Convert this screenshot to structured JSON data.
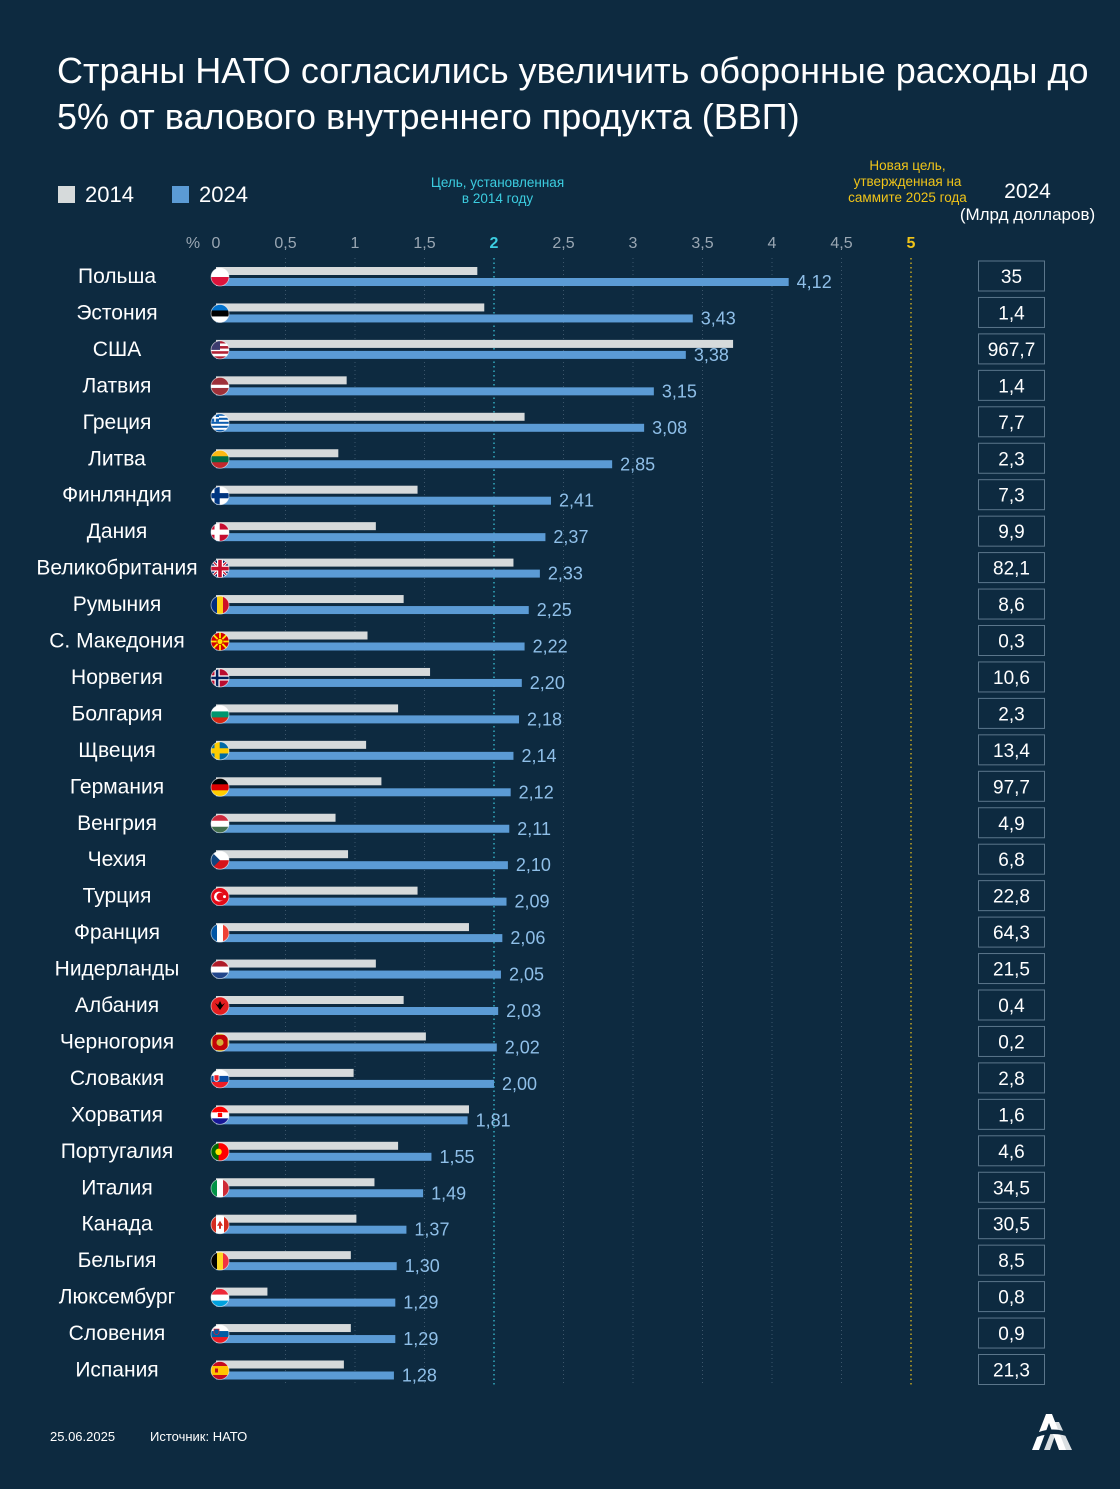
{
  "title": "Страны НАТО согласились увеличить оборонные расходы до 5% от валового внутреннего продукта (ВВП)",
  "legend": [
    {
      "label": "2014",
      "color": "#d6dadb"
    },
    {
      "label": "2024",
      "color": "#5b9bd5"
    }
  ],
  "target_2014_label": "Цель, установленная в 2014 году",
  "target_2025_label": "Новая цель, утвержденная на саммите 2025 года",
  "gdp_column": {
    "year": "2024",
    "unit": "(Млрд долларов)"
  },
  "axis": {
    "unit_label": "%",
    "ticks": [
      "0",
      "0,5",
      "1",
      "1,5",
      "2",
      "2,5",
      "3",
      "3,5",
      "4",
      "4,5",
      "5"
    ]
  },
  "colors": {
    "background": "#0d2a40",
    "bar_2014": "#d6dadb",
    "bar_2024": "#5b9bd5",
    "target_2014": "#3ccde0",
    "target_2025": "#f0c419",
    "value_text": "#8fbfe8"
  },
  "chart_data": {
    "type": "bar",
    "orientation": "horizontal",
    "xlim": [
      0,
      5
    ],
    "xlabel": "%",
    "categories": [
      "Польша",
      "Эстония",
      "США",
      "Латвия",
      "Греция",
      "Литва",
      "Финляндия",
      "Дания",
      "Великобритания",
      "Румыния",
      "С. Македония",
      "Норвегия",
      "Болгария",
      "Щвеция",
      "Германия",
      "Венгрия",
      "Чехия",
      "Турция",
      "Франция",
      "Нидерланды",
      "Албания",
      "Черногория",
      "Словакия",
      "Хорватия",
      "Португалия",
      "Италия",
      "Канада",
      "Бельгия",
      "Люксембург",
      "Словения",
      "Испания"
    ],
    "series": [
      {
        "name": "2014",
        "values": [
          1.88,
          1.93,
          3.72,
          0.94,
          2.22,
          0.88,
          1.45,
          1.15,
          2.14,
          1.35,
          1.09,
          1.54,
          1.31,
          1.08,
          1.19,
          0.86,
          0.95,
          1.45,
          1.82,
          1.15,
          1.35,
          1.51,
          0.99,
          1.82,
          1.31,
          1.14,
          1.01,
          0.97,
          0.37,
          0.97,
          0.92
        ]
      },
      {
        "name": "2024",
        "values": [
          4.12,
          3.43,
          3.38,
          3.15,
          3.08,
          2.85,
          2.41,
          2.37,
          2.33,
          2.25,
          2.22,
          2.2,
          2.18,
          2.14,
          2.12,
          2.11,
          2.1,
          2.09,
          2.06,
          2.05,
          2.03,
          2.02,
          2.0,
          1.81,
          1.55,
          1.49,
          1.37,
          1.3,
          1.29,
          1.29,
          1.28
        ]
      }
    ],
    "value_labels_2024": [
      "4,12",
      "3,43",
      "3,38",
      "3,15",
      "3,08",
      "2,85",
      "2,41",
      "2,37",
      "2,33",
      "2,25",
      "2,22",
      "2,20",
      "2,18",
      "2,14",
      "2,12",
      "2,11",
      "2,10",
      "2,09",
      "2,06",
      "2,05",
      "2,03",
      "2,02",
      "2,00",
      "1,81",
      "1,55",
      "1,49",
      "1,37",
      "1,30",
      "1,29",
      "1,29",
      "1,28"
    ],
    "gdp_2024_bn_usd": [
      "35",
      "1,4",
      "967,7",
      "1,4",
      "7,7",
      "2,3",
      "7,3",
      "9,9",
      "82,1",
      "8,6",
      "0,3",
      "10,6",
      "2,3",
      "13,4",
      "97,7",
      "4,9",
      "6,8",
      "22,8",
      "64,3",
      "21,5",
      "0,4",
      "0,2",
      "2,8",
      "1,6",
      "4,6",
      "34,5",
      "30,5",
      "8,5",
      "0,8",
      "0,9",
      "21,3"
    ],
    "flag_icons": [
      "poland-flag-icon",
      "estonia-flag-icon",
      "usa-flag-icon",
      "latvia-flag-icon",
      "greece-flag-icon",
      "lithuania-flag-icon",
      "finland-flag-icon",
      "denmark-flag-icon",
      "uk-flag-icon",
      "romania-flag-icon",
      "north-macedonia-flag-icon",
      "norway-flag-icon",
      "bulgaria-flag-icon",
      "sweden-flag-icon",
      "germany-flag-icon",
      "hungary-flag-icon",
      "czechia-flag-icon",
      "turkey-flag-icon",
      "france-flag-icon",
      "netherlands-flag-icon",
      "albania-flag-icon",
      "montenegro-flag-icon",
      "slovakia-flag-icon",
      "croatia-flag-icon",
      "portugal-flag-icon",
      "italy-flag-icon",
      "canada-flag-icon",
      "belgium-flag-icon",
      "luxembourg-flag-icon",
      "slovenia-flag-icon",
      "spain-flag-icon"
    ],
    "reference_lines": [
      {
        "value": 2,
        "label": "Цель, установленная в 2014 году"
      },
      {
        "value": 5,
        "label": "Новая цель, утвержденная на саммите 2025 года"
      }
    ]
  },
  "footer": {
    "date": "25.06.2025",
    "source": "Источник: НАТО"
  },
  "logo_icon": "aa-agency-logo-icon"
}
